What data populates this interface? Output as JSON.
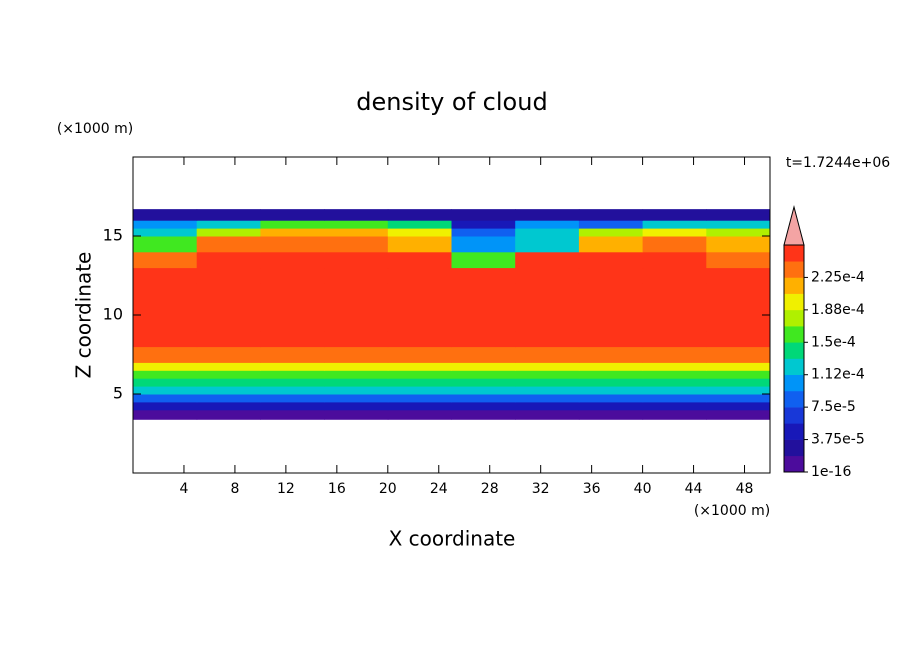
{
  "chart_data": {
    "type": "contour",
    "title": "density of cloud",
    "x_label": "X coordinate",
    "y_label": "Z coordinate",
    "x_unit": "(×1000 m)",
    "y_unit": "(×1000 m)",
    "time_label": "t=1.7244e+06",
    "xlim": [
      0,
      50
    ],
    "ylim": [
      0,
      20
    ],
    "xticks": [
      4,
      8,
      12,
      16,
      20,
      24,
      28,
      32,
      36,
      40,
      44,
      48
    ],
    "yticks": [
      5,
      10,
      15
    ],
    "x_edges": [
      0,
      5,
      10,
      15,
      20,
      25,
      30,
      35,
      40,
      45,
      50
    ],
    "z_edges": [
      3.4,
      4,
      4.5,
      5,
      5.5,
      6,
      6.5,
      7,
      8,
      9,
      12,
      13,
      14,
      15,
      15.5,
      16,
      16.7
    ],
    "values": [
      [
        1e-05,
        1e-05,
        1e-05,
        1e-05,
        1e-05,
        1e-05,
        1e-05,
        1e-05,
        1e-05,
        1e-05
      ],
      [
        4.5e-05,
        4.5e-05,
        4.5e-05,
        4.5e-05,
        4.5e-05,
        4.5e-05,
        4.5e-05,
        4.5e-05,
        4.5e-05,
        4.5e-05
      ],
      [
        8e-05,
        8e-05,
        8e-05,
        8e-05,
        8e-05,
        8e-05,
        8e-05,
        8e-05,
        8e-05,
        8e-05
      ],
      [
        0.00012,
        0.00012,
        0.00012,
        0.00012,
        0.00012,
        0.00012,
        0.00012,
        0.00012,
        0.00012,
        0.00012
      ],
      [
        0.00014,
        0.00014,
        0.00014,
        0.00014,
        0.00014,
        0.00014,
        0.00014,
        0.00014,
        0.00014,
        0.00014
      ],
      [
        0.00016,
        0.00016,
        0.00016,
        0.00016,
        0.00016,
        0.00016,
        0.00016,
        0.00016,
        0.00016,
        0.00016
      ],
      [
        0.000195,
        0.000195,
        0.000195,
        0.000195,
        0.000195,
        0.000195,
        0.000195,
        0.000195,
        0.000195,
        0.000195
      ],
      [
        0.00023,
        0.00023,
        0.00023,
        0.00023,
        0.00023,
        0.00023,
        0.00023,
        0.00023,
        0.00023,
        0.00023
      ],
      [
        0.000245,
        0.000245,
        0.000245,
        0.000245,
        0.000245,
        0.000245,
        0.000245,
        0.000245,
        0.000245,
        0.000245
      ],
      [
        0.00025,
        0.00025,
        0.00025,
        0.00025,
        0.00025,
        0.00025,
        0.00025,
        0.00025,
        0.00025,
        0.00025
      ],
      [
        0.000245,
        0.000245,
        0.000245,
        0.000245,
        0.000245,
        0.000245,
        0.000245,
        0.000245,
        0.000245,
        0.000245
      ],
      [
        0.00023,
        0.000245,
        0.000245,
        0.000245,
        0.000245,
        0.00016,
        0.000245,
        0.000245,
        0.000245,
        0.00023
      ],
      [
        0.00016,
        0.00023,
        0.00023,
        0.00023,
        0.00022,
        0.0001,
        0.00012,
        0.00022,
        0.00023,
        0.00022
      ],
      [
        0.00013,
        0.00018,
        0.00021,
        0.00021,
        0.0002,
        8e-05,
        0.00013,
        0.00017,
        0.0002,
        0.00017
      ],
      [
        0.00011,
        0.00012,
        0.00015,
        0.00016,
        0.00014,
        5e-05,
        0.0001,
        8e-05,
        0.00013,
        0.00012
      ],
      [
        3e-05,
        3e-05,
        3e-05,
        3e-05,
        3e-05,
        3e-05,
        3e-05,
        3e-05,
        3e-05,
        3e-05
      ]
    ],
    "colorbar": {
      "levels": [
        1e-16,
        1.875e-05,
        3.75e-05,
        5.625e-05,
        7.5e-05,
        9.375e-05,
        0.0001125,
        0.00013125,
        0.00015,
        0.00016875,
        0.0001875,
        0.00020625,
        0.000225,
        0.00024375,
        0.0002625
      ],
      "colors": [
        "#4c0c9c",
        "#22109c",
        "#1818b8",
        "#1838d8",
        "#1060f0",
        "#0094f8",
        "#00c8d0",
        "#00d878",
        "#40e820",
        "#b0f000",
        "#f0f000",
        "#ffb000",
        "#ff7010",
        "#ff3418"
      ],
      "extend_color": "#f4a4a4",
      "ticks": [
        1e-16,
        {
          "value": 3.75e-05,
          "label": "3.75e-5"
        },
        {
          "value": 7.5e-05,
          "label": "7.5e-5"
        },
        {
          "value": 0.0001125,
          "label": "1.12e-4"
        },
        {
          "value": 0.00015,
          "label": "1.5e-4"
        },
        {
          "value": 0.0001875,
          "label": "1.88e-4"
        },
        {
          "value": 0.000225,
          "label": "2.25e-4"
        }
      ]
    }
  }
}
